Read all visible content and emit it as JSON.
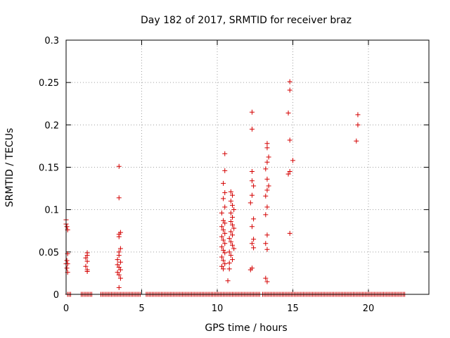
{
  "chart_data": {
    "type": "scatter",
    "title": "Day 182 of 2017, SRMTID for receiver braz",
    "xlabel": "GPS time / hours",
    "ylabel": "SRMTID / TECUs",
    "xlim": [
      0,
      24
    ],
    "ylim": [
      0,
      0.3
    ],
    "grid": true,
    "marker": "+",
    "color": "#d40000",
    "x_ticks": [
      0,
      5,
      10,
      15,
      20
    ],
    "x_tick_labels": [
      "0",
      "5",
      "10",
      "15",
      "20"
    ],
    "y_ticks": [
      0,
      0.05,
      0.1,
      0.15,
      0.2,
      0.25,
      0.3
    ],
    "y_tick_labels": [
      "0",
      "0.05",
      "0.1",
      "0.15",
      "0.2",
      "0.25",
      "0.3"
    ],
    "series": [
      {
        "name": "SRMTID",
        "points": [
          [
            0.0,
            0.088
          ],
          [
            0.0,
            0.083
          ],
          [
            0.05,
            0.08
          ],
          [
            0.1,
            0.076
          ],
          [
            0.1,
            0.048
          ],
          [
            0.05,
            0.04
          ],
          [
            0.0,
            0.036
          ],
          [
            0.1,
            0.036
          ],
          [
            0.05,
            0.031
          ],
          [
            0.1,
            0.026
          ],
          [
            1.4,
            0.049
          ],
          [
            1.4,
            0.046
          ],
          [
            1.3,
            0.043
          ],
          [
            1.4,
            0.039
          ],
          [
            1.3,
            0.033
          ],
          [
            1.4,
            0.029
          ],
          [
            1.4,
            0.027
          ],
          [
            3.5,
            0.151
          ],
          [
            3.5,
            0.114
          ],
          [
            3.6,
            0.073
          ],
          [
            3.5,
            0.071
          ],
          [
            3.5,
            0.068
          ],
          [
            3.6,
            0.054
          ],
          [
            3.5,
            0.05
          ],
          [
            3.5,
            0.046
          ],
          [
            3.4,
            0.041
          ],
          [
            3.6,
            0.038
          ],
          [
            3.4,
            0.035
          ],
          [
            3.5,
            0.032
          ],
          [
            3.6,
            0.029
          ],
          [
            3.4,
            0.026
          ],
          [
            3.5,
            0.023
          ],
          [
            3.6,
            0.019
          ],
          [
            3.5,
            0.008
          ],
          [
            10.5,
            0.166
          ],
          [
            10.5,
            0.146
          ],
          [
            10.4,
            0.131
          ],
          [
            10.5,
            0.12
          ],
          [
            10.4,
            0.113
          ],
          [
            10.5,
            0.103
          ],
          [
            10.3,
            0.096
          ],
          [
            10.4,
            0.087
          ],
          [
            10.5,
            0.084
          ],
          [
            10.3,
            0.08
          ],
          [
            10.4,
            0.076
          ],
          [
            10.5,
            0.072
          ],
          [
            10.3,
            0.068
          ],
          [
            10.4,
            0.064
          ],
          [
            10.5,
            0.06
          ],
          [
            10.3,
            0.056
          ],
          [
            10.4,
            0.052
          ],
          [
            10.5,
            0.049
          ],
          [
            10.3,
            0.044
          ],
          [
            10.4,
            0.04
          ],
          [
            10.5,
            0.036
          ],
          [
            10.3,
            0.033
          ],
          [
            10.4,
            0.03
          ],
          [
            10.9,
            0.121
          ],
          [
            11.0,
            0.117
          ],
          [
            10.9,
            0.11
          ],
          [
            11.0,
            0.105
          ],
          [
            11.1,
            0.1
          ],
          [
            10.9,
            0.096
          ],
          [
            11.0,
            0.091
          ],
          [
            10.9,
            0.086
          ],
          [
            11.0,
            0.082
          ],
          [
            11.1,
            0.078
          ],
          [
            10.9,
            0.074
          ],
          [
            11.0,
            0.07
          ],
          [
            10.8,
            0.066
          ],
          [
            10.9,
            0.062
          ],
          [
            11.0,
            0.058
          ],
          [
            11.1,
            0.054
          ],
          [
            10.8,
            0.05
          ],
          [
            10.9,
            0.046
          ],
          [
            11.0,
            0.041
          ],
          [
            10.8,
            0.037
          ],
          [
            10.8,
            0.03
          ],
          [
            10.7,
            0.016
          ],
          [
            12.3,
            0.215
          ],
          [
            12.3,
            0.195
          ],
          [
            12.3,
            0.145
          ],
          [
            12.3,
            0.134
          ],
          [
            12.4,
            0.128
          ],
          [
            12.3,
            0.117
          ],
          [
            12.2,
            0.108
          ],
          [
            12.4,
            0.089
          ],
          [
            12.3,
            0.08
          ],
          [
            12.4,
            0.065
          ],
          [
            12.3,
            0.06
          ],
          [
            12.4,
            0.055
          ],
          [
            12.3,
            0.031
          ],
          [
            12.2,
            0.029
          ],
          [
            13.3,
            0.178
          ],
          [
            13.3,
            0.173
          ],
          [
            13.4,
            0.162
          ],
          [
            13.3,
            0.156
          ],
          [
            13.2,
            0.148
          ],
          [
            13.3,
            0.136
          ],
          [
            13.4,
            0.128
          ],
          [
            13.3,
            0.123
          ],
          [
            13.2,
            0.116
          ],
          [
            13.3,
            0.103
          ],
          [
            13.2,
            0.094
          ],
          [
            13.3,
            0.07
          ],
          [
            13.2,
            0.06
          ],
          [
            13.3,
            0.053
          ],
          [
            13.2,
            0.019
          ],
          [
            13.3,
            0.015
          ],
          [
            14.8,
            0.251
          ],
          [
            14.8,
            0.241
          ],
          [
            14.7,
            0.214
          ],
          [
            14.8,
            0.182
          ],
          [
            15.0,
            0.158
          ],
          [
            14.8,
            0.145
          ],
          [
            14.7,
            0.142
          ],
          [
            14.8,
            0.072
          ],
          [
            19.3,
            0.212
          ],
          [
            19.3,
            0.2
          ],
          [
            19.2,
            0.181
          ]
        ]
      }
    ],
    "zero_band_ranges": [
      [
        0.1,
        0.3
      ],
      [
        1.0,
        1.7
      ],
      [
        2.3,
        4.9
      ],
      [
        5.3,
        12.8
      ],
      [
        13.0,
        22.4
      ]
    ]
  }
}
